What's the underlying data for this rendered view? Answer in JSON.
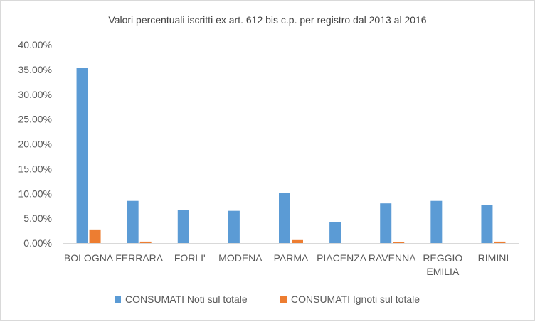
{
  "chart_data": {
    "type": "bar",
    "title": "Valori percentuali iscritti ex art. 612 bis c.p. per registro dal 2013 al 2016",
    "categories": [
      "BOLOGNA",
      "FERRARA",
      "FORLI'",
      "MODENA",
      "PARMA",
      "PIACENZA",
      "RAVENNA",
      "REGGIO EMILIA",
      "RIMINI"
    ],
    "category_lines": [
      [
        "BOLOGNA"
      ],
      [
        "FERRARA"
      ],
      [
        "FORLI'"
      ],
      [
        "MODENA"
      ],
      [
        "PARMA"
      ],
      [
        "PIACENZA"
      ],
      [
        "RAVENNA"
      ],
      [
        "REGGIO",
        "EMILIA"
      ],
      [
        "RIMINI"
      ]
    ],
    "series": [
      {
        "name": "CONSUMATI Noti sul totale",
        "color": "#5b9bd5",
        "values": [
          35.4,
          8.5,
          6.6,
          6.5,
          10.1,
          4.3,
          8.0,
          8.5,
          7.7
        ]
      },
      {
        "name": "CONSUMATI Ignoti sul totale",
        "color": "#ed7d31",
        "values": [
          2.6,
          0.3,
          0.0,
          0.0,
          0.6,
          0.0,
          0.2,
          0.0,
          0.3
        ]
      }
    ],
    "ylim": [
      0,
      40
    ],
    "yticks": [
      0,
      5,
      10,
      15,
      20,
      25,
      30,
      35,
      40
    ],
    "ytick_labels": [
      "0.00%",
      "5.00%",
      "10.00%",
      "15.00%",
      "20.00%",
      "25.00%",
      "30.00%",
      "35.00%",
      "40.00%"
    ],
    "grid": false,
    "legend": "bottom"
  }
}
